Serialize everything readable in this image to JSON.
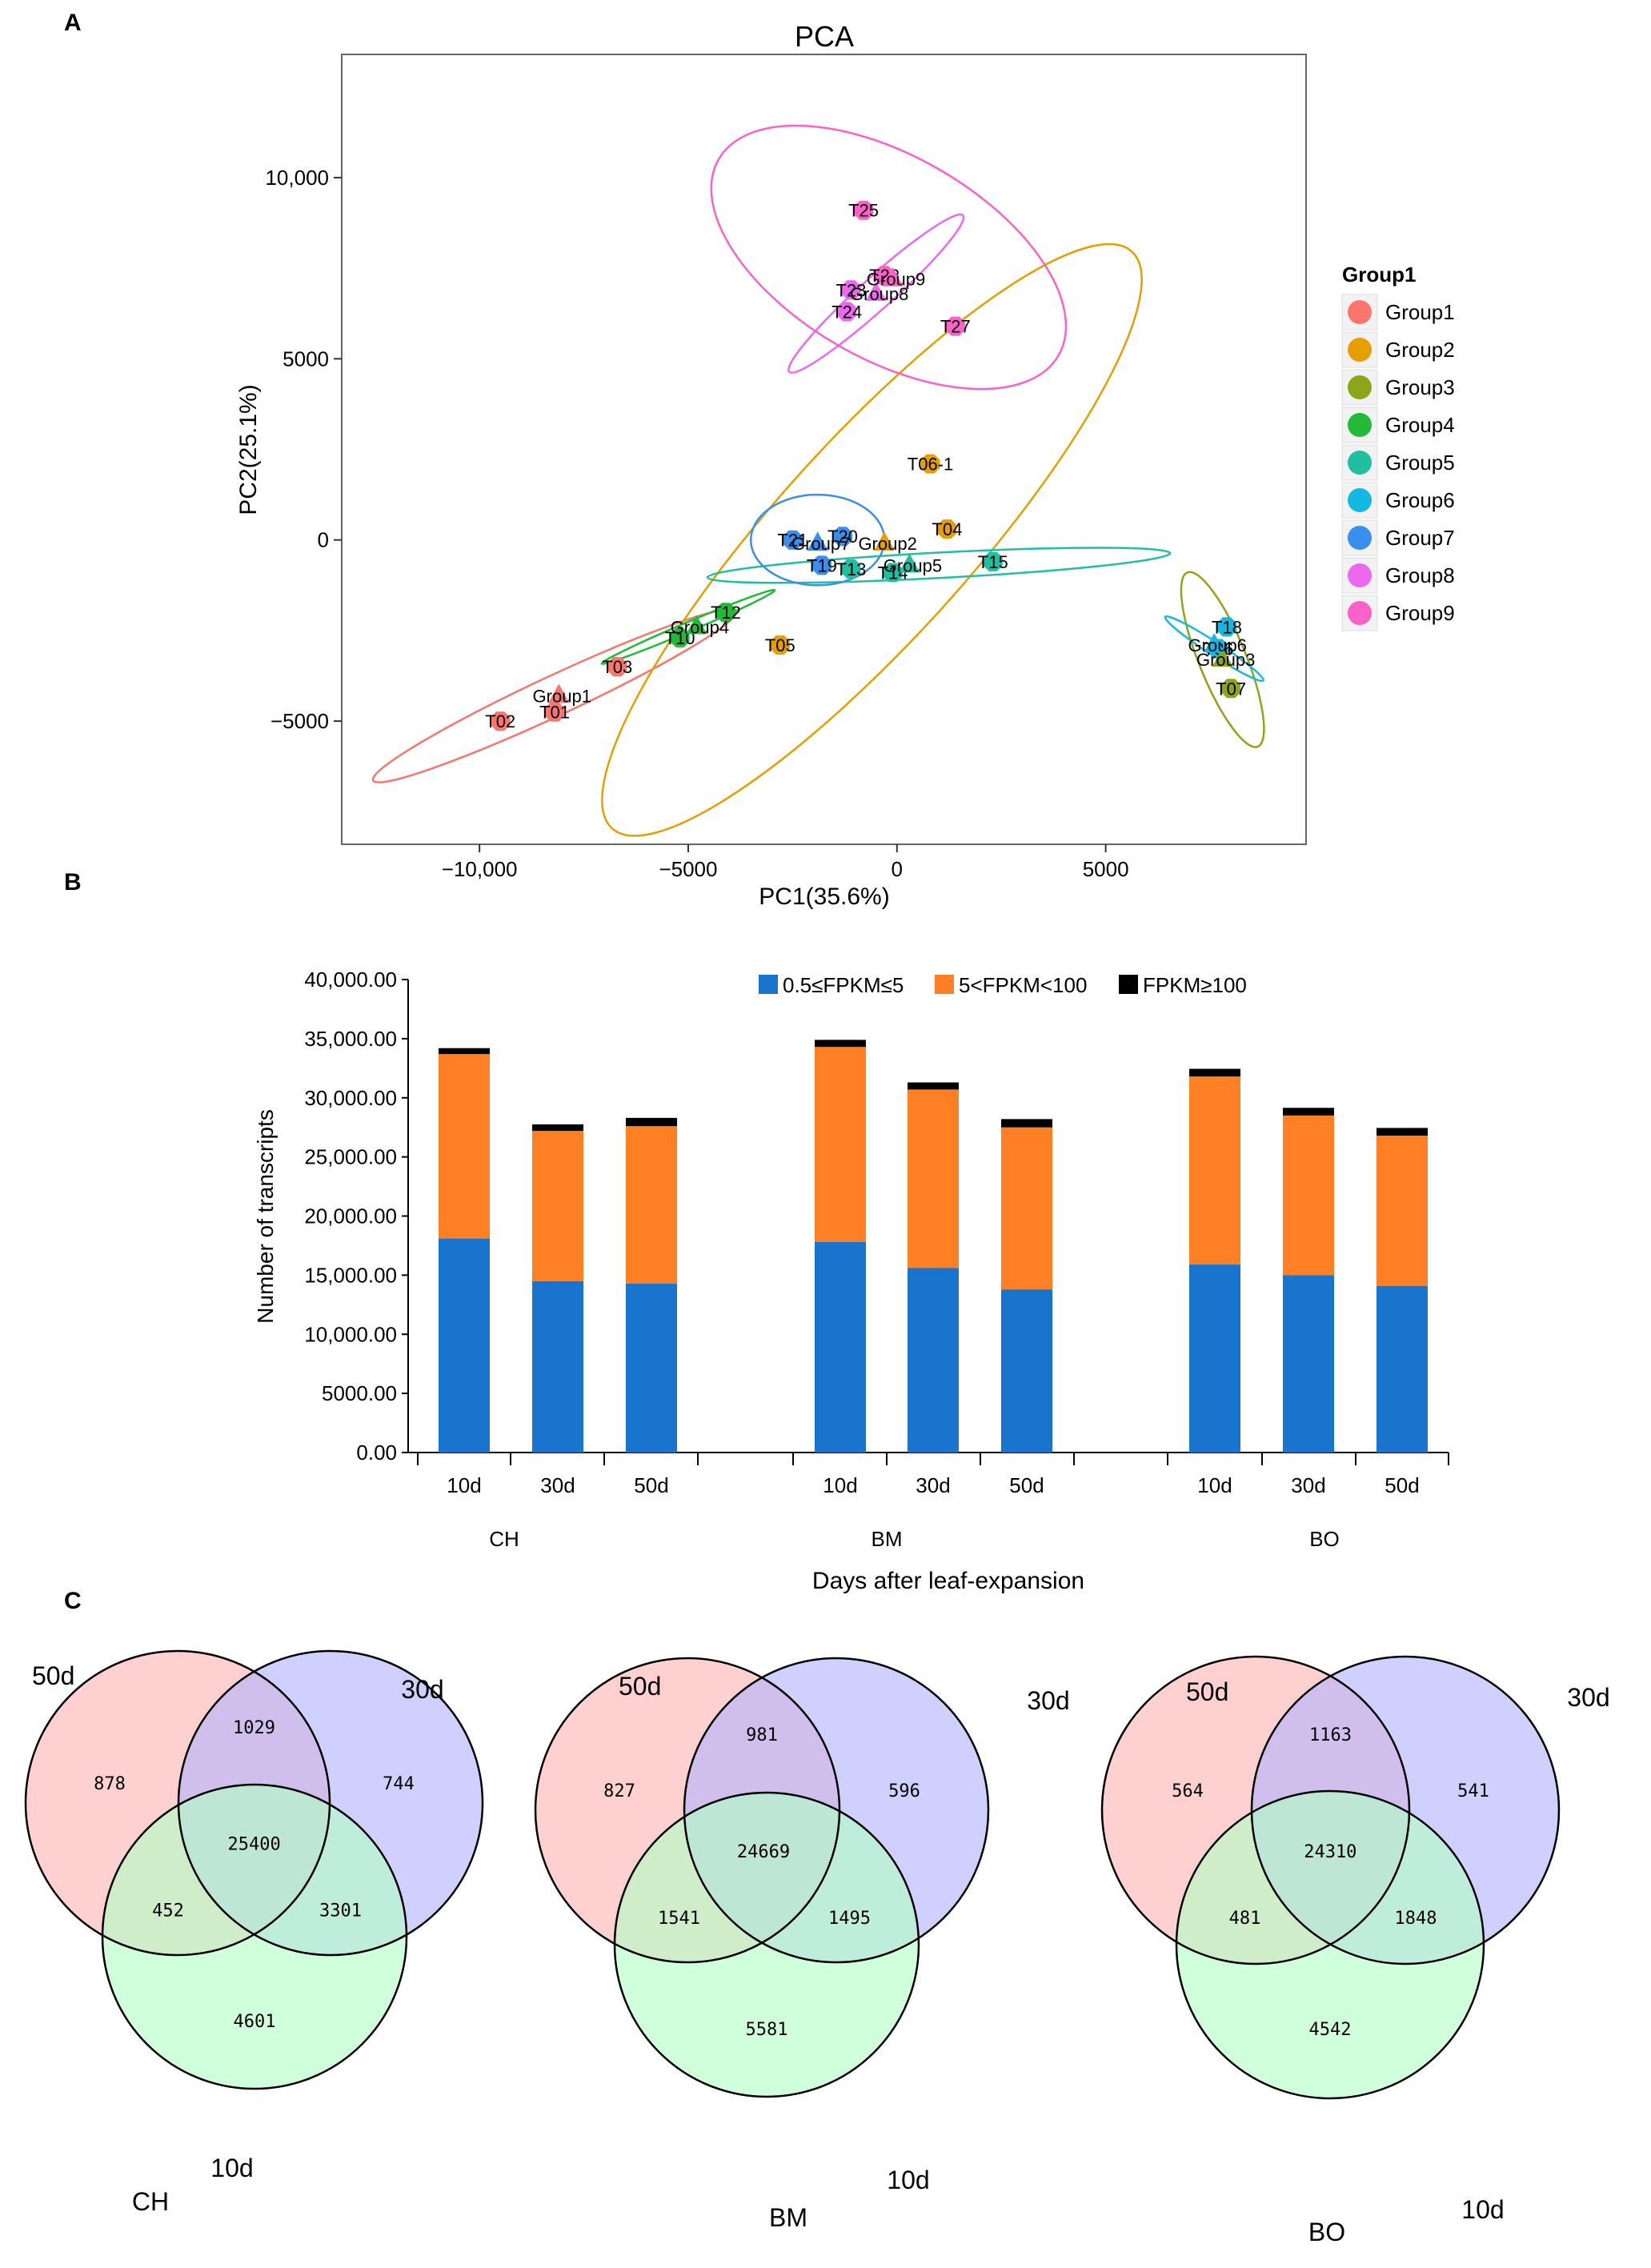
{
  "panels": {
    "a": "A",
    "b": "B",
    "c": "C"
  },
  "pca": {
    "title": "PCA",
    "xlabel": "PC1(35.6%)",
    "ylabel": "PC2(25.1%)",
    "xticks": [
      {
        "v": -10000,
        "label": "−10,000"
      },
      {
        "v": -5000,
        "label": "−5000"
      },
      {
        "v": 0,
        "label": "0"
      },
      {
        "v": 5000,
        "label": "5000"
      }
    ],
    "yticks": [
      {
        "v": -5000,
        "label": "−5000"
      },
      {
        "v": 0,
        "label": "0"
      },
      {
        "v": 5000,
        "label": "5000"
      },
      {
        "v": 10000,
        "label": "10,000"
      }
    ],
    "legend_title": "Group1"
  },
  "chart_data": [
    {
      "type": "scatter",
      "title": "PCA",
      "xlabel": "PC1(35.6%)",
      "ylabel": "PC2(25.1%)",
      "xlim": [
        -13300,
        9800
      ],
      "ylim": [
        -8400,
        13400
      ],
      "groups": [
        {
          "name": "Group1",
          "color": "#F8766D"
        },
        {
          "name": "Group2",
          "color": "#E69F00"
        },
        {
          "name": "Group3",
          "color": "#8DA619"
        },
        {
          "name": "Group4",
          "color": "#22BB38"
        },
        {
          "name": "Group5",
          "color": "#1FBF9F"
        },
        {
          "name": "Group6",
          "color": "#13B8E3"
        },
        {
          "name": "Group7",
          "color": "#3A8FEE"
        },
        {
          "name": "Group8",
          "color": "#EC69EF"
        },
        {
          "name": "Group9",
          "color": "#FB61C7"
        }
      ],
      "points": [
        {
          "label": "T02",
          "group": 0,
          "x": -9500,
          "y": -5000
        },
        {
          "label": "T01",
          "group": 0,
          "x": -8200,
          "y": -4750
        },
        {
          "label": "T03",
          "group": 0,
          "x": -6700,
          "y": -3500
        },
        {
          "label": "T06-1",
          "group": 1,
          "x": 800,
          "y": 2100
        },
        {
          "label": "T04",
          "group": 1,
          "x": 1200,
          "y": 300
        },
        {
          "label": "T05",
          "group": 1,
          "x": -2800,
          "y": -2900
        },
        {
          "label": "T07",
          "group": 2,
          "x": 8000,
          "y": -4100
        },
        {
          "label": "T12",
          "group": 3,
          "x": -4100,
          "y": -2000
        },
        {
          "label": "T10",
          "group": 3,
          "x": -5200,
          "y": -2700
        },
        {
          "label": "T15",
          "group": 4,
          "x": 2300,
          "y": -600
        },
        {
          "label": "T13",
          "group": 4,
          "x": -1100,
          "y": -800
        },
        {
          "label": "T14",
          "group": 4,
          "x": -100,
          "y": -900
        },
        {
          "label": "T18",
          "group": 5,
          "x": 7900,
          "y": -2400
        },
        {
          "label": "T06",
          "group": 5,
          "x": 7700,
          "y": -3000
        },
        {
          "label": "T21",
          "group": 6,
          "x": -2500,
          "y": 0
        },
        {
          "label": "T20",
          "group": 6,
          "x": -1300,
          "y": 100
        },
        {
          "label": "T19",
          "group": 6,
          "x": -1800,
          "y": -700
        },
        {
          "label": "T24",
          "group": 7,
          "x": -1200,
          "y": 6300
        },
        {
          "label": "T23",
          "group": 7,
          "x": -1100,
          "y": 6900
        },
        {
          "label": "T22",
          "group": 8,
          "x": -300,
          "y": 7300
        },
        {
          "label": "T25",
          "group": 8,
          "x": -800,
          "y": 9100
        },
        {
          "label": "T27",
          "group": 8,
          "x": 1400,
          "y": 5900
        }
      ],
      "centroids": [
        {
          "label": "Group1",
          "group": 0,
          "x": -8100,
          "y": -4300
        },
        {
          "label": "Group2",
          "group": 1,
          "x": -300,
          "y": -100
        },
        {
          "label": "Group3",
          "group": 2,
          "x": 7800,
          "y": -3300
        },
        {
          "label": "Group4",
          "group": 3,
          "x": -4800,
          "y": -2400
        },
        {
          "label": "Group5",
          "group": 4,
          "x": 300,
          "y": -700
        },
        {
          "label": "Group6",
          "group": 5,
          "x": 7600,
          "y": -2900
        },
        {
          "label": "Group7",
          "group": 6,
          "x": -1900,
          "y": -100
        },
        {
          "label": "Group8",
          "group": 7,
          "x": -500,
          "y": 6800
        },
        {
          "label": "Group9",
          "group": 8,
          "x": -100,
          "y": 7200
        }
      ],
      "ellipses": [
        {
          "group": 0,
          "cx": -8200,
          "cy": -4300,
          "rx": 4800,
          "ry": 550,
          "angle": 25
        },
        {
          "group": 1,
          "cx": -600,
          "cy": 0,
          "rx": 9300,
          "ry": 2700,
          "angle": 48
        },
        {
          "group": 2,
          "cx": 7800,
          "cy": -3300,
          "rx": 2250,
          "ry": 650,
          "angle": -68
        },
        {
          "group": 3,
          "cx": -5000,
          "cy": -2400,
          "rx": 2250,
          "ry": 130,
          "angle": 23
        },
        {
          "group": 4,
          "cx": 1000,
          "cy": -700,
          "rx": 5550,
          "ry": 350,
          "angle": 3
        },
        {
          "group": 5,
          "cx": 7600,
          "cy": -3000,
          "rx": 1400,
          "ry": 180,
          "angle": -33
        },
        {
          "group": 6,
          "cx": -1900,
          "cy": 0,
          "rx": 1600,
          "ry": 1250,
          "angle": 0
        },
        {
          "group": 7,
          "cx": -500,
          "cy": 6800,
          "rx": 2800,
          "ry": 440,
          "angle": 42
        },
        {
          "group": 8,
          "cx": -200,
          "cy": 7800,
          "rx": 4700,
          "ry": 2800,
          "angle": -30
        }
      ]
    },
    {
      "type": "bar",
      "stacked": true,
      "ylabel": "Number of transcripts",
      "xlabel": "Days after leaf-expansion",
      "ylim": [
        0,
        40000
      ],
      "yticks": [
        "0.00",
        "5000.00",
        "10,000.00",
        "15,000.00",
        "20,000.00",
        "25,000.00",
        "30,000.00",
        "35,000.00",
        "40,000.00"
      ],
      "categories": [
        "10d",
        "30d",
        "50d",
        "10d",
        "30d",
        "50d",
        "10d",
        "30d",
        "50d"
      ],
      "groups": [
        "CH",
        "BM",
        "BO"
      ],
      "series": [
        {
          "name": "0.5≤FPKM≤5",
          "color": "#1874CD",
          "values": [
            18100,
            14500,
            14300,
            17800,
            15600,
            13800,
            15900,
            15000,
            14100
          ]
        },
        {
          "name": "5<FPKM<100",
          "color": "#FF7F24",
          "values": [
            15600,
            12700,
            13300,
            16500,
            15100,
            13700,
            15900,
            13500,
            12700
          ]
        },
        {
          "name": "FPKM≥100",
          "color": "#000000",
          "values": [
            500,
            550,
            700,
            600,
            600,
            700,
            650,
            650,
            650
          ]
        }
      ]
    },
    {
      "type": "venn",
      "sets": [
        "50d",
        "30d",
        "10d"
      ],
      "colors": [
        "#FFB3B3",
        "#B3B3FF",
        "#B3FFC7"
      ],
      "diagrams": [
        {
          "name": "CH",
          "only50": "878",
          "only30": "744",
          "only10": "4601",
          "d50_30": "1029",
          "d50_10": "452",
          "d30_10": "3301",
          "all": "25400"
        },
        {
          "name": "BM",
          "only50": "827",
          "only30": "596",
          "only10": "5581",
          "d50_30": "981",
          "d50_10": "1541",
          "d30_10": "1495",
          "all": "24669"
        },
        {
          "name": "BO",
          "only50": "564",
          "only30": "541",
          "only10": "4542",
          "d50_30": "1163",
          "d50_10": "481",
          "d30_10": "1848",
          "all": "24310"
        }
      ]
    }
  ]
}
